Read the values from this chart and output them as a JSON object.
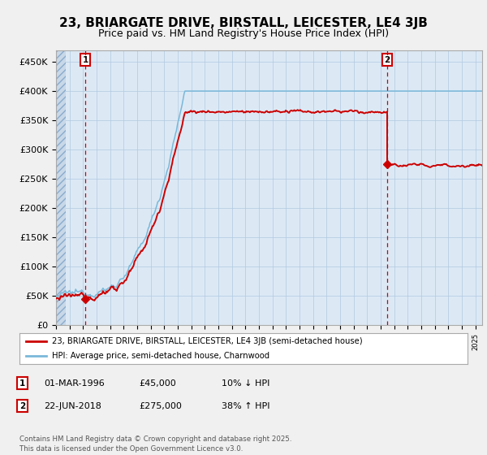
{
  "title": "23, BRIARGATE DRIVE, BIRSTALL, LEICESTER, LE4 3JB",
  "subtitle": "Price paid vs. HM Land Registry's House Price Index (HPI)",
  "ylim": [
    0,
    470000
  ],
  "yticks": [
    0,
    50000,
    100000,
    150000,
    200000,
    250000,
    300000,
    350000,
    400000,
    450000
  ],
  "ytick_labels": [
    "£0",
    "£50K",
    "£100K",
    "£150K",
    "£200K",
    "£250K",
    "£300K",
    "£350K",
    "£400K",
    "£450K"
  ],
  "sale1_date": 1996.17,
  "sale1_price": 45000,
  "sale1_label": "1",
  "sale2_date": 2018.47,
  "sale2_price": 275000,
  "sale2_label": "2",
  "hpi_color": "#7ab8d9",
  "price_color": "#cc0000",
  "background_color": "#f0f0f0",
  "plot_bg_color": "#dce9f5",
  "grid_color": "#b0c8e0",
  "hatch_color": "#c8d8e8",
  "legend_line1": "23, BRIARGATE DRIVE, BIRSTALL, LEICESTER, LE4 3JB (semi-detached house)",
  "legend_line2": "HPI: Average price, semi-detached house, Charnwood",
  "footer": "Contains HM Land Registry data © Crown copyright and database right 2025.\nThis data is licensed under the Open Government Licence v3.0.",
  "title_fontsize": 11,
  "subtitle_fontsize": 9,
  "tick_fontsize": 8
}
